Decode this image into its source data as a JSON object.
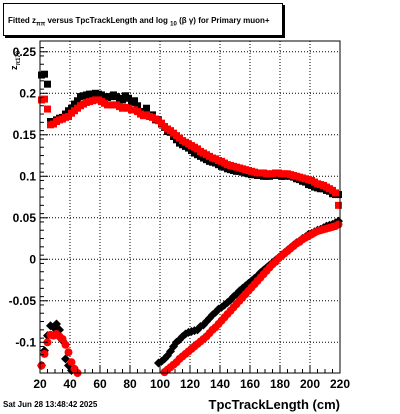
{
  "title": {
    "prefix": "Fitted",
    "z_symbol": "z",
    "z_sub": "ππ",
    "mid": "versus TpcTrackLength and log",
    "log_sub": "10",
    "beta_gamma": "(β γ)",
    "suffix": "for Primary muon+"
  },
  "footer": {
    "date": "Sat Jun 28 13:48:42 2025"
  },
  "axes": {
    "xlabel": "TpcTrackLength (cm)",
    "ylabel_main": "z",
    "ylabel_sub": "π170"
  },
  "chart_data": {
    "type": "scatter",
    "xlim": [
      20,
      220
    ],
    "ylim": [
      -0.137,
      0.263
    ],
    "xticks": [
      20,
      40,
      60,
      80,
      100,
      120,
      140,
      160,
      180,
      200,
      220
    ],
    "yticks": [
      -0.1,
      -0.05,
      0,
      0.05,
      0.1,
      0.15,
      0.2,
      0.25
    ],
    "ytick_labels": [
      "-0.1",
      "-0.05",
      "0",
      "0.05",
      "0.1",
      "0.15",
      "0.2",
      "0.25"
    ],
    "grid": true,
    "colors": {
      "black_series": "#000000",
      "red_series": "#ff0000"
    },
    "series": [
      {
        "color": "black",
        "marker": "square",
        "x": [
          21,
          23,
          25,
          27,
          29,
          31,
          33,
          35,
          37,
          39,
          41,
          43,
          45,
          47,
          49,
          51,
          53,
          55,
          57,
          59,
          61,
          63,
          65,
          67,
          69,
          71,
          73,
          75,
          77,
          79,
          81,
          83,
          85,
          87,
          89,
          91,
          93,
          95,
          97,
          99,
          101,
          103,
          105,
          107,
          109,
          111,
          113,
          115,
          117,
          119,
          121,
          123,
          125,
          127,
          129,
          131,
          133,
          135,
          137,
          139,
          141,
          143,
          145,
          147,
          149,
          151,
          153,
          155,
          157,
          159,
          161,
          163,
          165,
          167,
          169,
          171,
          173,
          175,
          177,
          179,
          181,
          183,
          185,
          187,
          189,
          191,
          193,
          195,
          197,
          199,
          201,
          203,
          205,
          207,
          209,
          211,
          213,
          215,
          217,
          219
        ],
        "y": [
          0.222,
          0.223,
          0.211,
          0.166,
          0.166,
          0.168,
          0.17,
          0.171,
          0.175,
          0.179,
          0.182,
          0.187,
          0.191,
          0.196,
          0.197,
          0.198,
          0.199,
          0.199,
          0.2,
          0.199,
          0.198,
          0.196,
          0.195,
          0.196,
          0.198,
          0.196,
          0.194,
          0.192,
          0.197,
          0.194,
          0.189,
          0.191,
          0.185,
          0.178,
          0.178,
          0.182,
          0.173,
          0.174,
          0.168,
          0.168,
          0.163,
          0.159,
          0.154,
          0.153,
          0.148,
          0.144,
          0.14,
          0.138,
          0.136,
          0.134,
          0.131,
          0.128,
          0.126,
          0.124,
          0.122,
          0.12,
          0.118,
          0.117,
          0.116,
          0.114,
          0.112,
          0.111,
          0.109,
          0.108,
          0.107,
          0.106,
          0.106,
          0.105,
          0.104,
          0.103,
          0.102,
          0.102,
          0.101,
          0.101,
          0.1,
          0.1,
          0.1,
          0.101,
          0.101,
          0.101,
          0.1,
          0.1,
          0.101,
          0.1,
          0.099,
          0.097,
          0.096,
          0.094,
          0.093,
          0.09,
          0.089,
          0.087,
          0.086,
          0.085,
          0.085,
          0.083,
          0.082,
          0.079,
          0.078,
          0.078
        ]
      },
      {
        "color": "red",
        "marker": "square",
        "x": [
          21,
          23,
          25,
          27,
          29,
          31,
          33,
          35,
          37,
          39,
          41,
          43,
          45,
          47,
          49,
          51,
          53,
          55,
          57,
          59,
          61,
          63,
          65,
          67,
          69,
          71,
          73,
          75,
          77,
          79,
          81,
          83,
          85,
          87,
          89,
          91,
          93,
          95,
          97,
          99,
          101,
          103,
          105,
          107,
          109,
          111,
          113,
          115,
          117,
          119,
          121,
          123,
          125,
          127,
          129,
          131,
          133,
          135,
          137,
          139,
          141,
          143,
          145,
          147,
          149,
          151,
          153,
          155,
          157,
          159,
          161,
          163,
          165,
          167,
          169,
          171,
          173,
          175,
          177,
          179,
          181,
          183,
          185,
          187,
          189,
          191,
          193,
          195,
          197,
          199,
          201,
          203,
          205,
          207,
          209,
          211,
          213,
          215,
          217,
          219
        ],
        "y": [
          0.192,
          0.193,
          0.181,
          0.162,
          0.163,
          0.166,
          0.168,
          0.169,
          0.171,
          0.172,
          0.176,
          0.179,
          0.182,
          0.185,
          0.187,
          0.189,
          0.19,
          0.191,
          0.192,
          0.192,
          0.19,
          0.188,
          0.186,
          0.186,
          0.186,
          0.186,
          0.184,
          0.182,
          0.183,
          0.182,
          0.18,
          0.18,
          0.178,
          0.175,
          0.173,
          0.174,
          0.172,
          0.171,
          0.169,
          0.167,
          0.164,
          0.16,
          0.157,
          0.155,
          0.152,
          0.149,
          0.146,
          0.143,
          0.141,
          0.139,
          0.137,
          0.135,
          0.133,
          0.13,
          0.128,
          0.126,
          0.124,
          0.122,
          0.121,
          0.119,
          0.118,
          0.116,
          0.114,
          0.113,
          0.112,
          0.111,
          0.11,
          0.109,
          0.108,
          0.107,
          0.106,
          0.105,
          0.104,
          0.104,
          0.104,
          0.103,
          0.103,
          0.103,
          0.104,
          0.104,
          0.103,
          0.103,
          0.103,
          0.102,
          0.101,
          0.1,
          0.099,
          0.098,
          0.097,
          0.096,
          0.095,
          0.093,
          0.091,
          0.09,
          0.089,
          0.087,
          0.085,
          0.083,
          0.08,
          0.065
        ]
      },
      {
        "color": "black",
        "marker": "diamond",
        "x": [
          21,
          23,
          25,
          27,
          29,
          31,
          33,
          35,
          37,
          39,
          41,
          43,
          45,
          47,
          49,
          51,
          53,
          55,
          57,
          99,
          101,
          103,
          105,
          107,
          109,
          111,
          113,
          115,
          117,
          119,
          121,
          123,
          125,
          127,
          129,
          131,
          133,
          135,
          137,
          139,
          141,
          143,
          145,
          147,
          149,
          151,
          153,
          155,
          157,
          159,
          161,
          163,
          165,
          167,
          169,
          171,
          173,
          175,
          177,
          179,
          181,
          183,
          185,
          187,
          189,
          191,
          193,
          195,
          197,
          199,
          201,
          203,
          205,
          207,
          209,
          211,
          213,
          215,
          217,
          219
        ],
        "y": [
          -0.128,
          -0.11,
          -0.092,
          -0.08,
          -0.082,
          -0.078,
          -0.085,
          -0.098,
          -0.12,
          -0.128,
          -0.134,
          -0.138,
          -0.138,
          -0.138,
          -0.138,
          -0.138,
          -0.138,
          -0.138,
          -0.138,
          -0.125,
          -0.123,
          -0.12,
          -0.116,
          -0.111,
          -0.105,
          -0.1,
          -0.097,
          -0.093,
          -0.09,
          -0.088,
          -0.087,
          -0.086,
          -0.085,
          -0.081,
          -0.079,
          -0.075,
          -0.071,
          -0.067,
          -0.064,
          -0.06,
          -0.058,
          -0.055,
          -0.052,
          -0.049,
          -0.045,
          -0.042,
          -0.038,
          -0.035,
          -0.032,
          -0.029,
          -0.026,
          -0.023,
          -0.02,
          -0.016,
          -0.013,
          -0.01,
          -0.007,
          -0.004,
          -0.001,
          0.002,
          0.005,
          0.008,
          0.011,
          0.014,
          0.017,
          0.02,
          0.022,
          0.025,
          0.027,
          0.03,
          0.031,
          0.033,
          0.035,
          0.036,
          0.038,
          0.04,
          0.041,
          0.042,
          0.044,
          0.046
        ]
      },
      {
        "color": "red",
        "marker": "circle",
        "x": [
          21,
          23,
          25,
          27,
          29,
          31,
          33,
          35,
          37,
          39,
          41,
          43,
          45,
          47,
          49,
          51,
          53,
          55,
          57,
          103,
          105,
          107,
          109,
          111,
          113,
          115,
          117,
          119,
          121,
          123,
          125,
          127,
          129,
          131,
          133,
          135,
          137,
          139,
          141,
          143,
          145,
          147,
          149,
          151,
          153,
          155,
          157,
          159,
          161,
          163,
          165,
          167,
          169,
          171,
          173,
          175,
          177,
          179,
          181,
          183,
          185,
          187,
          189,
          191,
          193,
          195,
          197,
          199,
          201,
          203,
          205,
          207,
          209,
          211,
          213,
          215,
          217,
          219
        ],
        "y": [
          -0.128,
          -0.114,
          -0.1,
          -0.091,
          -0.092,
          -0.09,
          -0.093,
          -0.096,
          -0.103,
          -0.112,
          -0.124,
          -0.132,
          -0.137,
          -0.138,
          -0.138,
          -0.138,
          -0.138,
          -0.138,
          -0.138,
          -0.136,
          -0.133,
          -0.13,
          -0.127,
          -0.124,
          -0.12,
          -0.117,
          -0.114,
          -0.111,
          -0.108,
          -0.105,
          -0.102,
          -0.099,
          -0.096,
          -0.093,
          -0.089,
          -0.085,
          -0.082,
          -0.078,
          -0.074,
          -0.07,
          -0.066,
          -0.062,
          -0.058,
          -0.054,
          -0.05,
          -0.046,
          -0.042,
          -0.038,
          -0.034,
          -0.03,
          -0.026,
          -0.022,
          -0.018,
          -0.014,
          -0.01,
          -0.006,
          -0.003,
          0.001,
          0.004,
          0.007,
          0.01,
          0.013,
          0.016,
          0.019,
          0.021,
          0.024,
          0.026,
          0.028,
          0.03,
          0.032,
          0.034,
          0.035,
          0.036,
          0.037,
          0.038,
          0.039,
          0.04,
          0.042
        ]
      }
    ]
  }
}
